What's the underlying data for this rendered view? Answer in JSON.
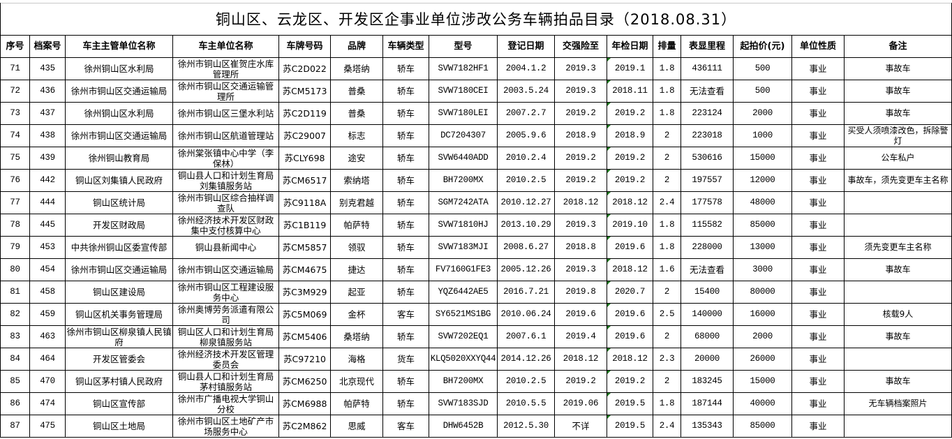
{
  "title": "铜山区、云龙区、开发区企事业单位涉改公务车辆拍品目录（2018.08.31）",
  "columns": [
    "序号",
    "档案号",
    "车主主管单位名称",
    "车主单位名称",
    "车牌号码",
    "品牌",
    "车辆类型",
    "型号",
    "登记日期",
    "交强险至",
    "年检日期",
    "排量",
    "表显里程",
    "起拍价(元)",
    "单位性质",
    "备注"
  ],
  "rows": [
    [
      "71",
      "435",
      "徐州铜山区水利局",
      "徐州市铜山区崔贺庄水库管理所",
      "苏C2D022",
      "桑塔纳",
      "轿车",
      "SVW7182HF1",
      "2004.1.2",
      "2019.3",
      "2019.1",
      "1.8",
      "436111",
      "500",
      "事业",
      "事故车"
    ],
    [
      "72",
      "436",
      "徐州市铜山区交通运输局",
      "徐州市铜山区交通运输管理所",
      "苏CM5173",
      "普桑",
      "轿车",
      "SVW7180CEI",
      "2003.5.24",
      "2019.3",
      "2018.11",
      "1.8",
      "无法查看",
      "500",
      "事业",
      "事故车"
    ],
    [
      "73",
      "437",
      "徐州铜山区水利局",
      "徐州市铜山区三堡水利站",
      "苏C2D119",
      "普桑",
      "轿车",
      "SVW7180LEI",
      "2007.2.7",
      "2019.2",
      "2019.2",
      "1.8",
      "223124",
      "2000",
      "事业",
      "事故车"
    ],
    [
      "74",
      "438",
      "徐州市铜山区交通运输局",
      "徐州市铜山区航道管理站",
      "苏C29007",
      "标志",
      "轿车",
      "DC7204307",
      "2005.9.6",
      "2018.9",
      "2018.9",
      "2",
      "223018",
      "1000",
      "事业",
      "买受人须喷漆改色，拆除警灯"
    ],
    [
      "75",
      "439",
      "徐州铜山教育局",
      "徐州棠张镇中心中学（李保林）",
      "苏CLY698",
      "途安",
      "轿车",
      "SVW6440ADD",
      "2010.2.4",
      "2019.2",
      "2019.2",
      "2",
      "530616",
      "15000",
      "事业",
      "公车私户"
    ],
    [
      "76",
      "442",
      "铜山区刘集镇人民政府",
      "铜山县人口和计划生育局刘集镇服务站",
      "苏CM6517",
      "索纳塔",
      "轿车",
      "BH7200MX",
      "2010.2.5",
      "2019.2",
      "2019.2",
      "2",
      "197557",
      "12000",
      "事业",
      "事故车，须先变更车主名称"
    ],
    [
      "77",
      "444",
      "铜山区统计局",
      "徐州市铜山区综合抽样调查队",
      "苏C9118A",
      "别克君越",
      "轿车",
      "SGM7242ATA",
      "2010.12.27",
      "2018.12",
      "2018.12",
      "2.4",
      "177578",
      "48000",
      "事业",
      ""
    ],
    [
      "78",
      "445",
      "开发区财政局",
      "徐州经济技术开发区财政集中支付核算中心",
      "苏C1B119",
      "帕萨特",
      "轿车",
      "SVW71810HJ",
      "2013.10.29",
      "2019.3",
      "2019.10",
      "1.8",
      "115582",
      "85000",
      "事业",
      ""
    ],
    [
      "79",
      "453",
      "中共徐州铜山区委宣传部",
      "铜山县新闻中心",
      "苏CM5857",
      "领驭",
      "轿车",
      "SVW7183MJI",
      "2008.6.27",
      "2018.8",
      "2019.6",
      "1.8",
      "228000",
      "13000",
      "事业",
      "须先变更车主名称"
    ],
    [
      "80",
      "454",
      "徐州市铜山区交通运输局",
      "徐州市铜山区交通运输局",
      "苏CM4675",
      "捷达",
      "轿车",
      "FV7160G1FE3",
      "2005.12.26",
      "2019.3",
      "2018.12",
      "1.6",
      "无法查看",
      "3000",
      "事业",
      "事故车"
    ],
    [
      "81",
      "458",
      "铜山区建设局",
      "徐州市铜山区工程建设服务中心",
      "苏C3M929",
      "起亚",
      "轿车",
      "YQZ6442AE5",
      "2016.7.21",
      "2019.8",
      "2020.7",
      "2",
      "15400",
      "80000",
      "事业",
      ""
    ],
    [
      "82",
      "459",
      "铜山区机关事务管理局",
      "徐州奥博劳务派遣有限公司",
      "苏C5M069",
      "金杯",
      "客车",
      "SY6521MS1BG",
      "2010.06.24",
      "2019.6",
      "2019.6",
      "2.5",
      "140000",
      "16000",
      "事业",
      "核载9人"
    ],
    [
      "83",
      "463",
      "徐州市铜山区柳泉镇人民镇府",
      "铜山区人口和计划生育局柳泉镇服务站",
      "苏CM5406",
      "桑塔纳",
      "轿车",
      "SVW7202EQ1",
      "2007.6.1",
      "2019.4",
      "2019.6",
      "2",
      "68000",
      "2000",
      "事业",
      "事故车"
    ],
    [
      "84",
      "464",
      "开发区管委会",
      "徐州经济技术开发区管理委员会",
      "苏C97210",
      "海格",
      "货车",
      "KLQ5020XXYQ44",
      "2014.12.26",
      "2018.12",
      "2018.12",
      "2.3",
      "20000",
      "26000",
      "事业",
      ""
    ],
    [
      "85",
      "470",
      "铜山区茅村镇人民政府",
      "铜山县人口和计划生育局茅村镇服务站",
      "苏CM6250",
      "北京现代",
      "轿车",
      "BH7200MX",
      "2010.2.5",
      "2019.2",
      "2019.2",
      "2",
      "183245",
      "15000",
      "事业",
      "事故车"
    ],
    [
      "86",
      "474",
      "铜山区宣传部",
      "徐州市广播电视大学铜山分校",
      "苏CM6988",
      "帕萨特",
      "轿车",
      "SVW7183SJD",
      "2010.5.5",
      "2019.06",
      "2019.5",
      "1.8",
      "187144",
      "40000",
      "事业",
      "无车辆档案照片"
    ],
    [
      "87",
      "475",
      "铜山区土地局",
      "徐州市铜山区土地矿产市场服务中心",
      "苏C2M862",
      "思威",
      "客车",
      "DHW6452B",
      "2012.5.30",
      "不详",
      "2019.5",
      "2.4",
      "135343",
      "85000",
      "事业",
      ""
    ]
  ],
  "colors": {
    "error_indicator": "#1e7a1e",
    "grid": "#000000"
  }
}
